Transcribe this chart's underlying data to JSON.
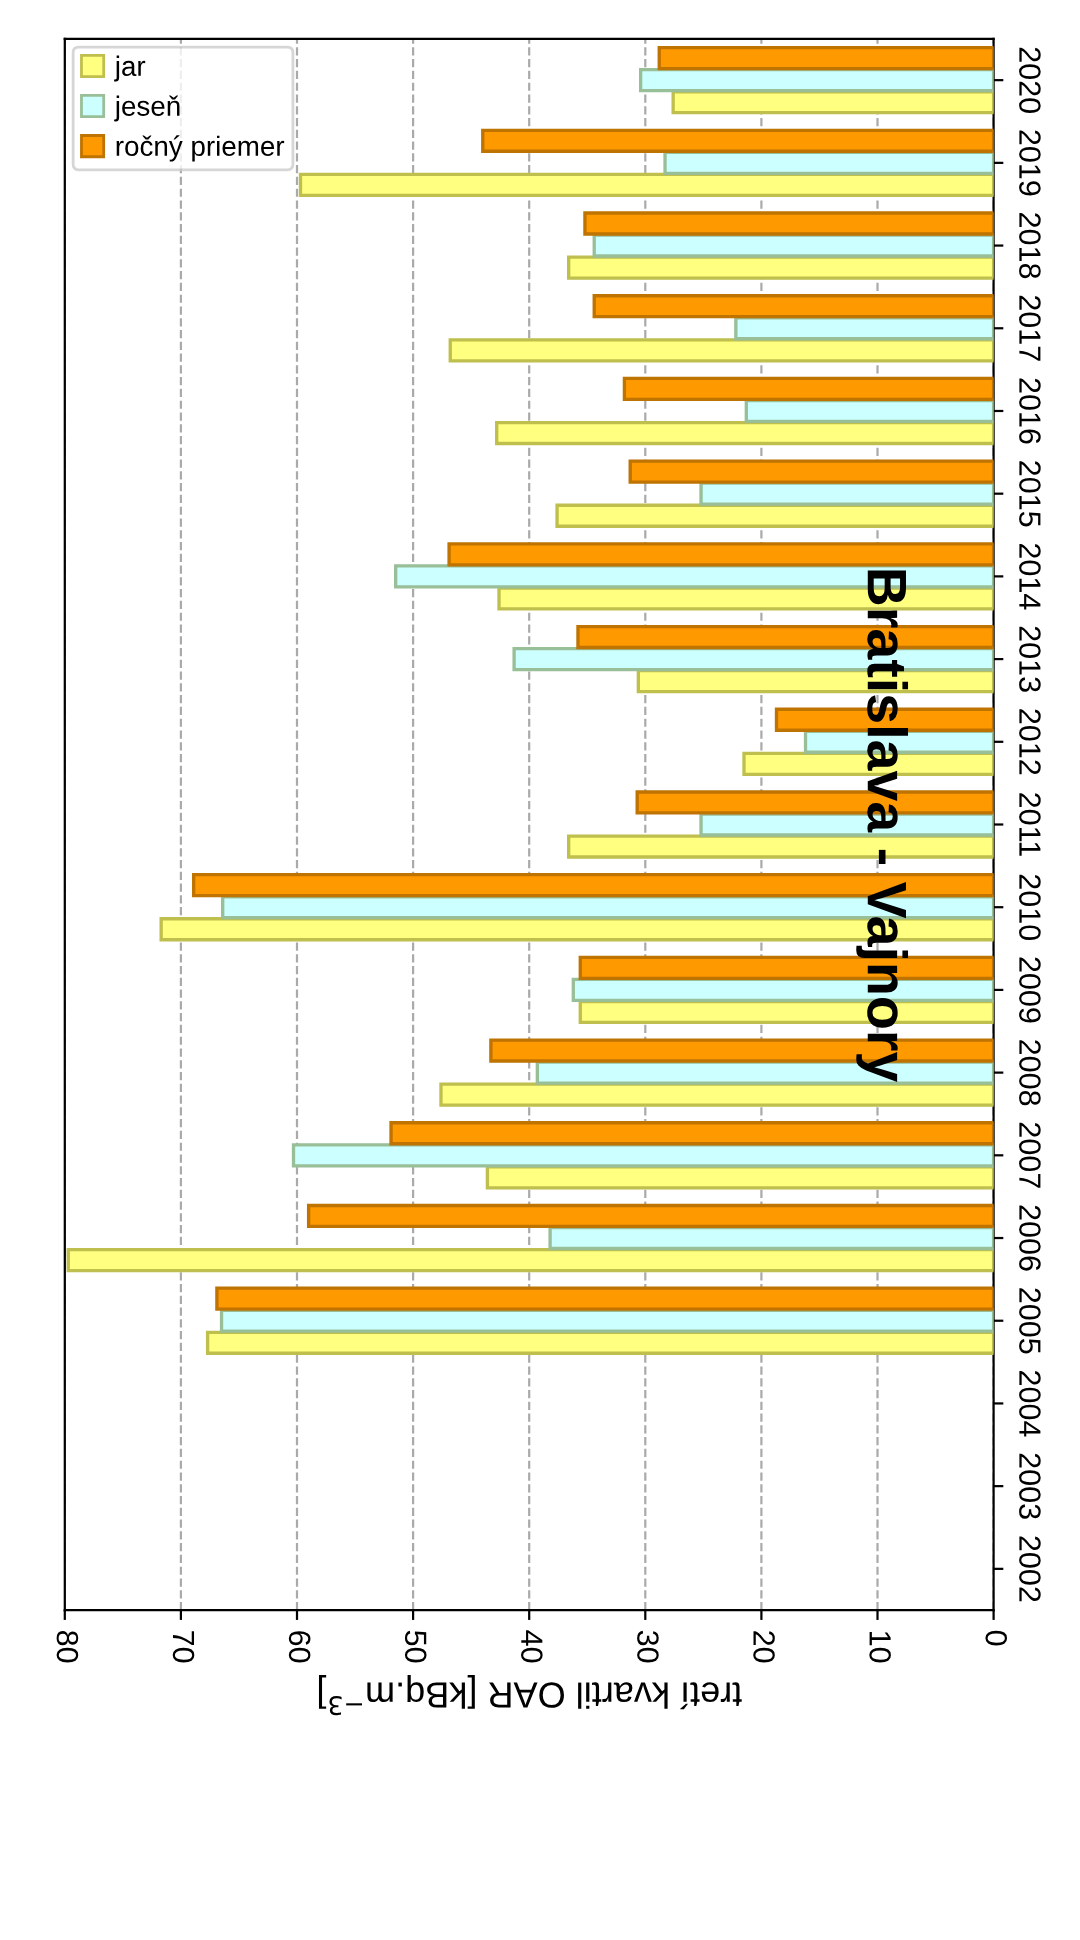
{
  "chart_data": {
    "type": "bar",
    "orientation": "horizontal",
    "title": "Bratislava - Vajnory",
    "xlabel": "tretí kvartil OAR [kBq.m$^{−3}$]",
    "categories": [
      "2020",
      "2019",
      "2018",
      "2017",
      "2016",
      "2015",
      "2014",
      "2013",
      "2012",
      "2011",
      "2010",
      "2009",
      "2008",
      "2007",
      "2006",
      "2005",
      "2004",
      "2003",
      "2002"
    ],
    "series": [
      {
        "name": "jar",
        "color": "#ffff80",
        "values": [
          27.6,
          59.7,
          36.6,
          46.8,
          42.8,
          37.6,
          42.6,
          30.6,
          21.5,
          36.6,
          71.7,
          35.6,
          47.6,
          43.6,
          79.7,
          67.7,
          null,
          null,
          null
        ]
      },
      {
        "name": "jeseň",
        "color": "#ccffff",
        "values": [
          30.4,
          28.3,
          34.4,
          22.2,
          21.3,
          25.2,
          51.5,
          41.3,
          16.2,
          25.2,
          66.4,
          36.2,
          39.3,
          60.3,
          38.2,
          66.5,
          null,
          null,
          null
        ]
      },
      {
        "name": "ročný priemer",
        "color": "#ff9900",
        "values": [
          28.8,
          44.0,
          35.2,
          34.4,
          31.8,
          31.3,
          46.9,
          35.8,
          18.7,
          30.7,
          68.9,
          35.6,
          43.3,
          51.9,
          59.0,
          66.9,
          null,
          null,
          null
        ]
      }
    ],
    "xlim": [
      80,
      0
    ],
    "xticks": [
      80,
      70,
      60,
      50,
      40,
      30,
      20,
      10,
      0
    ],
    "grid": "x",
    "legend": "top left"
  }
}
